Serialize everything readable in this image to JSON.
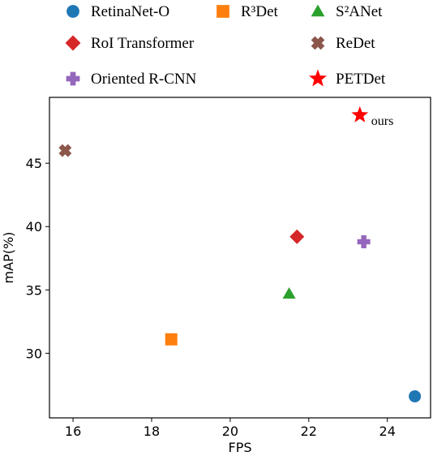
{
  "chart_data": {
    "type": "scatter",
    "xlabel": "FPS",
    "ylabel": "mAP(%)",
    "xlim": [
      15.4,
      25.1
    ],
    "ylim": [
      24.9,
      50.2
    ],
    "xticks": [
      16,
      18,
      20,
      22,
      24
    ],
    "yticks": [
      30,
      35,
      40,
      45
    ],
    "grid": false,
    "legend_placement": "top, outside plot",
    "series": [
      {
        "name": "RetinaNet-O",
        "marker": "circle",
        "color": "#1f77b4",
        "x": 24.7,
        "y": 26.6
      },
      {
        "name": "R³Det",
        "marker": "square",
        "color": "#ff7f0e",
        "x": 18.5,
        "y": 31.1
      },
      {
        "name": "S²ANet",
        "marker": "triangle",
        "color": "#2ca02c",
        "x": 21.5,
        "y": 34.7
      },
      {
        "name": "RoI Transformer",
        "marker": "diamond",
        "color": "#d62728",
        "x": 21.7,
        "y": 39.2
      },
      {
        "name": "ReDet",
        "marker": "x-cross",
        "color": "#8c564b",
        "x": 15.8,
        "y": 46.0
      },
      {
        "name": "Oriented R-CNN",
        "marker": "plus",
        "color": "#9467bd",
        "x": 23.4,
        "y": 38.8
      },
      {
        "name": "PETDet",
        "marker": "star",
        "color": "#ff0000",
        "x": 23.3,
        "y": 48.8
      }
    ],
    "annotations": [
      {
        "text": "ours",
        "x": 23.3,
        "y": 48.8
      }
    ]
  }
}
